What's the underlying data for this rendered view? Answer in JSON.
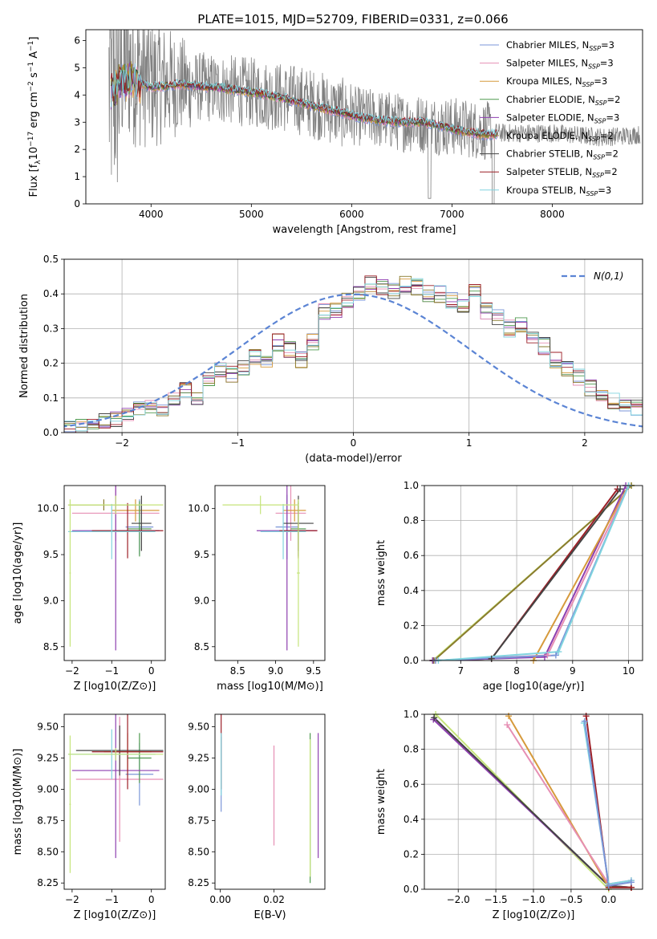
{
  "title": "PLATE=1015, MJD=52709, FIBERID=0331, z=0.066",
  "colors": [
    "#7b96d8",
    "#e68fb4",
    "#d69a3c",
    "#4f9a4f",
    "#8e3fb0",
    "#8a7b2e",
    "#444444",
    "#9c1f27",
    "#80d4df"
  ],
  "lime": "#c5e47a",
  "chart_data": [
    {
      "id": "spectrum",
      "type": "line",
      "xlabel": "wavelength [Angstrom, rest frame]",
      "ylabel": "Flux [f_λ 10^-17 erg cm^-2 s^-1 A^-1]",
      "xlim": [
        3350,
        8900
      ],
      "ylim": [
        0,
        6.4
      ],
      "xticks": [
        "4000",
        "5000",
        "6000",
        "7000",
        "8000"
      ],
      "yticks": [
        "0",
        "1",
        "2",
        "3",
        "4",
        "5",
        "6"
      ],
      "legend_position": "right",
      "series": [
        {
          "name": "Chabrier MILES, N_SSP=3"
        },
        {
          "name": "Salpeter MILES, N_SSP=3"
        },
        {
          "name": "Kroupa MILES, N_SSP=3"
        },
        {
          "name": "Chabrier ELODIE, N_SSP=2"
        },
        {
          "name": "Salpeter ELODIE, N_SSP=3"
        },
        {
          "name": "Kroupa ELODIE, N_SSP=2"
        },
        {
          "name": "Chabrier STELIB, N_SSP=2"
        },
        {
          "name": "Salpeter STELIB, N_SSP=2"
        },
        {
          "name": "Kroupa STELIB, N_SSP=3"
        }
      ],
      "model_continuum": {
        "x": [
          3600,
          3700,
          3800,
          3900,
          4000,
          4100,
          4300,
          4500,
          4700,
          5000,
          5300,
          5600,
          5900,
          6100,
          6300,
          6500,
          6700,
          6900,
          7100,
          7300,
          7450
        ],
        "y": [
          4.0,
          4.5,
          4.6,
          4.4,
          4.3,
          4.3,
          4.4,
          4.3,
          4.25,
          4.1,
          3.9,
          3.6,
          3.35,
          3.15,
          3.05,
          3.0,
          3.0,
          2.85,
          2.65,
          2.55,
          2.55
        ]
      },
      "observed_continuum": {
        "x": [
          3580,
          3650,
          3750,
          3850,
          4000,
          4200,
          4500,
          5000,
          5500,
          6000,
          6500,
          7000,
          7500,
          8000,
          8500,
          8880
        ],
        "y": [
          4.2,
          4.6,
          5.2,
          4.9,
          4.5,
          4.4,
          4.3,
          4.1,
          3.8,
          3.25,
          3.0,
          2.85,
          2.6,
          2.6,
          2.45,
          2.55
        ]
      }
    },
    {
      "id": "residuals",
      "type": "line",
      "xlabel": "(data-model)/error",
      "ylabel": "Normed distribution",
      "xlim": [
        -2.5,
        2.5
      ],
      "ylim": [
        0,
        0.5
      ],
      "xticks": [
        "−2",
        "−1",
        "0",
        "1",
        "2"
      ],
      "yticks": [
        "0.0",
        "0.1",
        "0.2",
        "0.3",
        "0.4",
        "0.5"
      ],
      "grid": true,
      "legend_position": "upper right",
      "legend": "N(0,1)",
      "bin_width": 0.1,
      "bin_start": -2.5,
      "hist_base": [
        0.01,
        0.015,
        0.02,
        0.03,
        0.04,
        0.05,
        0.07,
        0.08,
        0.065,
        0.1,
        0.12,
        0.1,
        0.15,
        0.18,
        0.17,
        0.19,
        0.22,
        0.2,
        0.26,
        0.24,
        0.21,
        0.26,
        0.35,
        0.35,
        0.38,
        0.4,
        0.43,
        0.42,
        0.41,
        0.43,
        0.42,
        0.4,
        0.4,
        0.38,
        0.37,
        0.41,
        0.35,
        0.33,
        0.3,
        0.31,
        0.28,
        0.25,
        0.21,
        0.18,
        0.16,
        0.13,
        0.1,
        0.09,
        0.08,
        0.07
      ],
      "gaussian": {
        "mean": 0,
        "sigma": 1
      }
    },
    {
      "id": "age-vs-Z",
      "type": "scatter",
      "xlabel": "Z [log10(Z/Z⊙)]",
      "ylabel": "age [log10(age/yr)]",
      "xlim": [
        -2.2,
        0.35
      ],
      "ylim": [
        8.35,
        10.25
      ],
      "xticks": [
        "−2",
        "−1",
        "0"
      ],
      "yticks": [
        "8.5",
        "9.0",
        "9.5",
        "10.0"
      ],
      "errorbars": [
        {
          "c": 0,
          "x": -0.3,
          "y": 9.8,
          "xe": 0.35,
          "ye": 0.3
        },
        {
          "c": 1,
          "x": -0.9,
          "y": 9.95,
          "xe": 1.1,
          "ye": 0.3
        },
        {
          "c": 2,
          "x": -0.4,
          "y": 9.98,
          "xe": 0.6,
          "ye": 0.12
        },
        {
          "c": 3,
          "x": -0.3,
          "y": 9.78,
          "xe": 0.3,
          "ye": 0.3
        },
        {
          "c": 4,
          "x": -0.9,
          "y": 9.76,
          "xe": 1.1,
          "ye": 1.3
        },
        {
          "c": 5,
          "x": -1.2,
          "y": 10.04,
          "xe": 0.9,
          "ye": 0.06
        },
        {
          "c": 6,
          "x": -0.25,
          "y": 9.84,
          "xe": 0.25,
          "ye": 0.3
        },
        {
          "c": 7,
          "x": -0.6,
          "y": 9.76,
          "xe": 0.9,
          "ye": 0.3
        },
        {
          "c": 8,
          "x": -1.0,
          "y": 9.75,
          "xe": 1.1,
          "ye": 0.3
        },
        {
          "c": 9,
          "x": -0.9,
          "y": 10.04,
          "xe": 1.2,
          "ye": 0.1
        },
        {
          "c": 9,
          "x": -2.05,
          "y": 9.3,
          "xe": 0.02,
          "ye": 0.8
        }
      ]
    },
    {
      "id": "age-vs-mass",
      "type": "scatter",
      "xlabel": "mass [log10(M/M⊙)]",
      "xlim": [
        8.2,
        9.65
      ],
      "ylim": [
        8.35,
        10.25
      ],
      "xticks": [
        "8.5",
        "9.0",
        "9.5"
      ],
      "yticks": [
        "8.5",
        "9.0",
        "9.5",
        "10.0"
      ],
      "errorbars": [
        {
          "c": 0,
          "x": 9.15,
          "y": 9.8,
          "xe": 0.15,
          "ye": 0.35
        },
        {
          "c": 1,
          "x": 9.2,
          "y": 9.95,
          "xe": 0.2,
          "ye": 0.3
        },
        {
          "c": 2,
          "x": 9.25,
          "y": 9.98,
          "xe": 0.15,
          "ye": 0.12
        },
        {
          "c": 3,
          "x": 9.3,
          "y": 9.78,
          "xe": 0.1,
          "ye": 0.3
        },
        {
          "c": 4,
          "x": 9.15,
          "y": 9.76,
          "xe": 0.4,
          "ye": 1.3
        },
        {
          "c": 6,
          "x": 9.3,
          "y": 9.84,
          "xe": 0.2,
          "ye": 0.3
        },
        {
          "c": 7,
          "x": 9.3,
          "y": 9.76,
          "xe": 0.25,
          "ye": 0.3
        },
        {
          "c": 8,
          "x": 9.1,
          "y": 9.75,
          "xe": 0.3,
          "ye": 0.3
        },
        {
          "c": 9,
          "x": 8.8,
          "y": 10.04,
          "xe": 0.5,
          "ye": 0.1
        },
        {
          "c": 9,
          "x": 9.3,
          "y": 9.3,
          "xe": 0.02,
          "ye": 0.8
        }
      ]
    },
    {
      "id": "weight-vs-age",
      "type": "line",
      "xlabel": "age [log10(age/yr)]",
      "ylabel": "mass weight",
      "xlim": [
        6.35,
        10.25
      ],
      "ylim": [
        0,
        1
      ],
      "xticks": [
        "7",
        "8",
        "9",
        "10"
      ],
      "yticks": [
        "0.0",
        "0.2",
        "0.4",
        "0.6",
        "0.8",
        "1.0"
      ],
      "grid": true,
      "lines": [
        {
          "c": 9,
          "x": [
            6.5,
            10.05
          ],
          "y": [
            0.0,
            1.0
          ]
        },
        {
          "c": 5,
          "x": [
            6.52,
            10.05
          ],
          "y": [
            0.0,
            1.0
          ]
        },
        {
          "c": 7,
          "x": [
            6.5,
            7.55,
            9.8
          ],
          "y": [
            0.0,
            0.01,
            0.98
          ]
        },
        {
          "c": 6,
          "x": [
            6.5,
            7.55,
            9.85
          ],
          "y": [
            0.0,
            0.01,
            0.98
          ]
        },
        {
          "c": 4,
          "x": [
            6.5,
            8.5,
            9.95
          ],
          "y": [
            0.0,
            0.02,
            1.0
          ]
        },
        {
          "c": 2,
          "x": [
            8.3,
            10.0
          ],
          "y": [
            0.0,
            1.0
          ]
        },
        {
          "c": 1,
          "x": [
            6.55,
            8.55,
            10.0
          ],
          "y": [
            0.0,
            0.03,
            1.0
          ]
        },
        {
          "c": 0,
          "x": [
            6.55,
            8.7,
            10.0
          ],
          "y": [
            0.0,
            0.03,
            1.0
          ]
        },
        {
          "c": 8,
          "x": [
            6.6,
            8.75,
            10.0
          ],
          "y": [
            0.0,
            0.05,
            1.0
          ]
        }
      ]
    },
    {
      "id": "mass-vs-Z",
      "type": "scatter",
      "xlabel": "Z [log10(Z/Z⊙)]",
      "ylabel": "mass [log10(M/M⊙)]",
      "xlim": [
        -2.2,
        0.35
      ],
      "ylim": [
        8.2,
        9.6
      ],
      "xticks": [
        "−2",
        "−1",
        "0"
      ],
      "yticks": [
        "8.25",
        "8.50",
        "8.75",
        "9.00",
        "9.25",
        "9.50"
      ],
      "errorbars": [
        {
          "c": 0,
          "x": -0.3,
          "y": 9.12,
          "xe": 0.35,
          "ye": 0.25
        },
        {
          "c": 1,
          "x": -0.8,
          "y": 9.08,
          "xe": 1.1,
          "ye": 0.5
        },
        {
          "c": 2,
          "x": -0.6,
          "y": 9.3,
          "xe": 0.6,
          "ye": 0.15
        },
        {
          "c": 3,
          "x": -0.3,
          "y": 9.25,
          "xe": 0.3,
          "ye": 0.2
        },
        {
          "c": 4,
          "x": -0.9,
          "y": 9.15,
          "xe": 1.1,
          "ye": 0.7
        },
        {
          "c": 6,
          "x": -0.8,
          "y": 9.31,
          "xe": 1.1,
          "ye": 0.2
        },
        {
          "c": 7,
          "x": -0.6,
          "y": 9.3,
          "xe": 0.9,
          "ye": 0.3
        },
        {
          "c": 8,
          "x": -1.0,
          "y": 9.28,
          "xe": 1.1,
          "ye": 0.2
        },
        {
          "c": 9,
          "x": -0.9,
          "y": 9.28,
          "xe": 1.2,
          "ye": 0.05
        },
        {
          "c": 9,
          "x": -2.05,
          "y": 8.88,
          "xe": 0.02,
          "ye": 0.55
        }
      ]
    },
    {
      "id": "mass-vs-ebv",
      "type": "scatter",
      "xlabel": "E(B-V)",
      "xlim": [
        -0.002,
        0.039
      ],
      "ylim": [
        8.2,
        9.6
      ],
      "xticks": [
        "0.00",
        "0.02"
      ],
      "yticks": [
        "8.25",
        "8.50",
        "8.75",
        "9.00",
        "9.25",
        "9.50"
      ],
      "errorbars": [
        {
          "c": 0,
          "x": 0.0003,
          "y": 9.12,
          "xe": 0,
          "ye": 0.3
        },
        {
          "c": 7,
          "x": 0.0003,
          "y": 9.3,
          "xe": 0,
          "ye": 0.3
        },
        {
          "c": 8,
          "x": 0.0003,
          "y": 9.2,
          "xe": 0,
          "ye": 0.25
        },
        {
          "c": 1,
          "x": 0.02,
          "y": 8.95,
          "xe": 0,
          "ye": 0.4
        },
        {
          "c": 3,
          "x": 0.0335,
          "y": 8.85,
          "xe": 0,
          "ye": 0.6
        },
        {
          "c": 9,
          "x": 0.0335,
          "y": 8.85,
          "xe": 0,
          "ye": 0.55
        },
        {
          "c": 4,
          "x": 0.0365,
          "y": 8.95,
          "xe": 0,
          "ye": 0.5
        }
      ]
    },
    {
      "id": "weight-vs-Z",
      "type": "line",
      "xlabel": "Z [log10(Z/Z⊙)]",
      "ylabel": "mass weight",
      "xlim": [
        -2.45,
        0.45
      ],
      "ylim": [
        0,
        1
      ],
      "xticks": [
        "−2.0",
        "−1.5",
        "−1.0",
        "−0.5",
        "0.0"
      ],
      "yticks": [
        "0.0",
        "0.2",
        "0.4",
        "0.6",
        "0.8",
        "1.0"
      ],
      "grid": true,
      "lines": [
        {
          "c": 9,
          "x": [
            -2.3,
            0.0
          ],
          "y": [
            1.0,
            0.0
          ]
        },
        {
          "c": 4,
          "x": [
            -2.33,
            0.0,
            0.3
          ],
          "y": [
            0.97,
            0.02,
            0.01
          ]
        },
        {
          "c": 6,
          "x": [
            -2.32,
            0.0,
            0.3
          ],
          "y": [
            0.98,
            0.02,
            0.01
          ]
        },
        {
          "c": 2,
          "x": [
            -1.33,
            0.0,
            0.3
          ],
          "y": [
            0.99,
            0.01,
            0.01
          ]
        },
        {
          "c": 1,
          "x": [
            -1.35,
            0.0,
            0.3
          ],
          "y": [
            0.94,
            0.03,
            0.05
          ]
        },
        {
          "c": 7,
          "x": [
            -0.3,
            0.0,
            0.3
          ],
          "y": [
            0.99,
            0.01,
            0.01
          ]
        },
        {
          "c": 8,
          "x": [
            -0.33,
            0.0,
            0.3
          ],
          "y": [
            0.95,
            0.03,
            0.05
          ]
        },
        {
          "c": 0,
          "x": [
            -0.32,
            0.0,
            0.3
          ],
          "y": [
            0.96,
            0.02,
            0.04
          ]
        }
      ]
    }
  ]
}
